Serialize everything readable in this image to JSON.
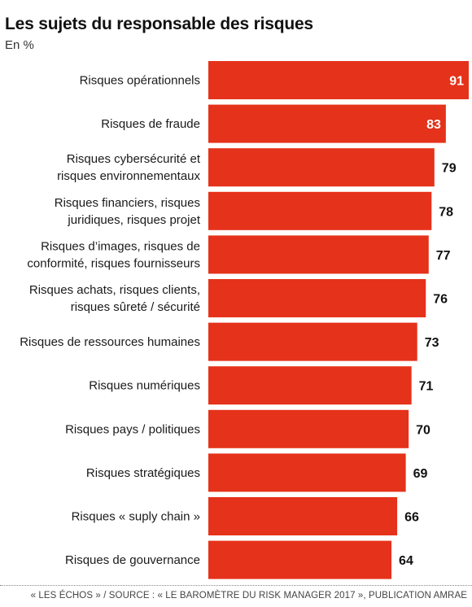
{
  "header": {
    "title": "Les sujets du responsable des risques",
    "subtitle": "En %"
  },
  "footer": {
    "source": "« LES ÉCHOS » / SOURCE : « LE BAROMÈTRE DU RISK MANAGER 2017 », PUBLICATION AMRAE"
  },
  "colors": {
    "bar": "#e5321a",
    "value_inside": "#ffffff",
    "value_outside": "#111111"
  },
  "chart_data": {
    "type": "bar",
    "orientation": "horizontal",
    "title": "Les sujets du responsable des risques",
    "subtitle": "En %",
    "categories": [
      [
        "Risques opérationnels"
      ],
      [
        "Risques de fraude"
      ],
      [
        "Risques cybersécurité et",
        "risques environnementaux"
      ],
      [
        "Risques financiers, risques",
        "juridiques, risques projet"
      ],
      [
        "Risques d’images, risques de",
        "conformité, risques fournisseurs"
      ],
      [
        "Risques achats, risques clients,",
        "risques sûreté / sécurité"
      ],
      [
        "Risques de ressources humaines"
      ],
      [
        "Risques numériques"
      ],
      [
        "Risques pays / politiques"
      ],
      [
        "Risques stratégiques"
      ],
      [
        "Risques « suply chain »"
      ],
      [
        "Risques de gouvernance"
      ]
    ],
    "values": [
      91,
      83,
      79,
      78,
      77,
      76,
      73,
      71,
      70,
      69,
      66,
      64
    ],
    "xlim": [
      0,
      91
    ],
    "grid": false,
    "legend": "none"
  }
}
